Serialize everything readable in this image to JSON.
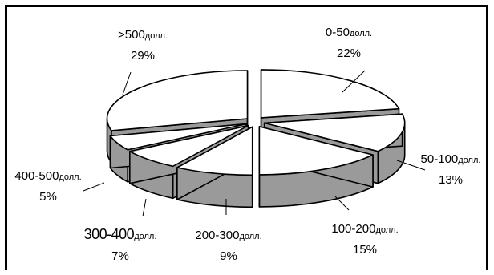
{
  "chart_data": {
    "type": "pie",
    "style": "3d-exploded",
    "title": "",
    "slices": [
      {
        "range": "0-50",
        "unit": "долл.",
        "value": 22,
        "pct": "22%"
      },
      {
        "range": "50-100",
        "unit": "долл.",
        "value": 13,
        "pct": "13%"
      },
      {
        "range": "100-200",
        "unit": "долл.",
        "value": 15,
        "pct": "15%"
      },
      {
        "range": "200-300",
        "unit": "долл.",
        "value": 9,
        "pct": "9%"
      },
      {
        "range": "300-400",
        "unit": "долл.",
        "value": 7,
        "pct": "7%"
      },
      {
        "range": "400-500",
        "unit": "долл.",
        "value": 5,
        "pct": "5%"
      },
      {
        "range": ">500",
        "unit": "долл.",
        "value": 29,
        "pct": "29%"
      }
    ],
    "colors": {
      "top": "#ffffff",
      "side": "#9a9a9a",
      "edge": "#000000"
    }
  }
}
